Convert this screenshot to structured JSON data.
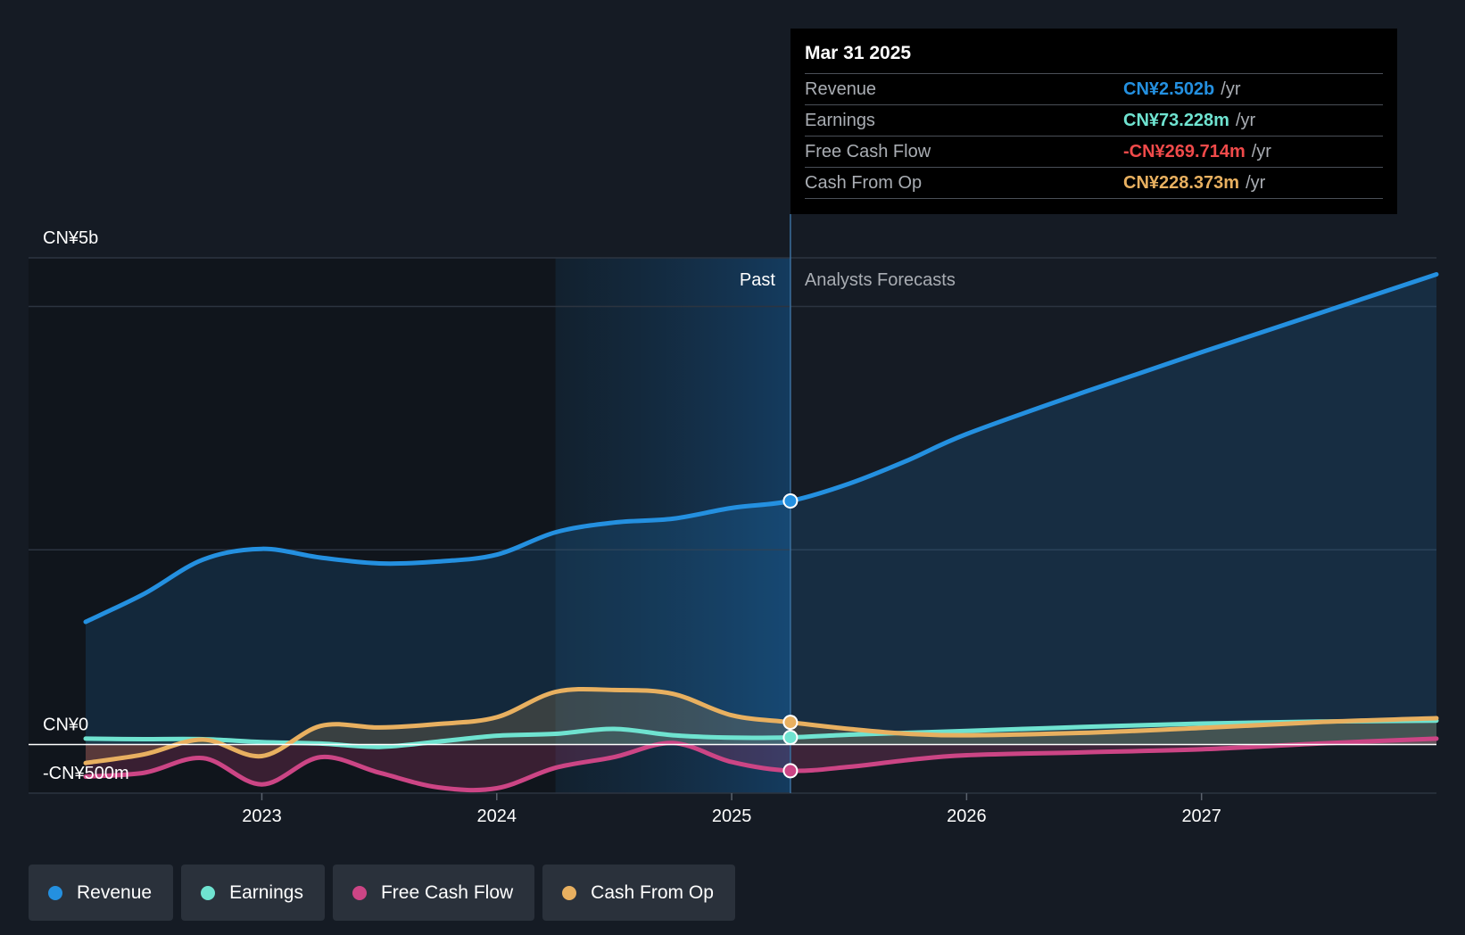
{
  "colors": {
    "revenue": "#2490e0",
    "earnings": "#6fe3d0",
    "free_cash_flow": "#cc4585",
    "cash_from_op": "#e8b060",
    "negative_value": "#f04a4a",
    "background": "#151b24"
  },
  "tooltip": {
    "date": "Mar 31 2025",
    "rows": [
      {
        "name": "Revenue",
        "value": "CN¥2.502b",
        "unit": "/yr",
        "color": "#2490e0"
      },
      {
        "name": "Earnings",
        "value": "CN¥73.228m",
        "unit": "/yr",
        "color": "#6fe3d0"
      },
      {
        "name": "Free Cash Flow",
        "value": "-CN¥269.714m",
        "unit": "/yr",
        "color": "#f04a4a"
      },
      {
        "name": "Cash From Op",
        "value": "CN¥228.373m",
        "unit": "/yr",
        "color": "#e8b060"
      }
    ]
  },
  "legend": [
    {
      "label": "Revenue",
      "color": "#2490e0"
    },
    {
      "label": "Earnings",
      "color": "#6fe3d0"
    },
    {
      "label": "Free Cash Flow",
      "color": "#cc4585"
    },
    {
      "label": "Cash From Op",
      "color": "#e8b060"
    }
  ],
  "chart_data": {
    "type": "line",
    "title": "",
    "y_unit": "CN¥ millions",
    "y_tick_labels": [
      {
        "value": 5000,
        "label": "CN¥5b"
      },
      {
        "value": 0,
        "label": "CN¥0"
      },
      {
        "value": -500,
        "label": "-CN¥500m"
      }
    ],
    "ylim": [
      -500,
      5000
    ],
    "xlim": [
      2022.25,
      2028.0
    ],
    "x_ticks": [
      2023,
      2024,
      2025,
      2026,
      2027
    ],
    "x_tick_labels": [
      "2023",
      "2024",
      "2025",
      "2026",
      "2027"
    ],
    "gridlines_y": [
      5000,
      4500,
      2000,
      -500
    ],
    "divider_x": 2025.25,
    "highlight_start_x": 2024.25,
    "past_label": "Past",
    "forecast_label": "Analysts Forecasts",
    "series": [
      {
        "name": "Revenue",
        "key": "revenue",
        "points": [
          [
            2022.25,
            1260
          ],
          [
            2022.5,
            1550
          ],
          [
            2022.75,
            1900
          ],
          [
            2023.0,
            2010
          ],
          [
            2023.25,
            1920
          ],
          [
            2023.5,
            1860
          ],
          [
            2023.75,
            1880
          ],
          [
            2024.0,
            1950
          ],
          [
            2024.25,
            2180
          ],
          [
            2024.5,
            2280
          ],
          [
            2024.75,
            2320
          ],
          [
            2025.0,
            2430
          ],
          [
            2025.25,
            2502
          ],
          [
            2025.5,
            2680
          ],
          [
            2025.75,
            2920
          ],
          [
            2026.0,
            3190
          ],
          [
            2026.5,
            3620
          ],
          [
            2027.0,
            4030
          ],
          [
            2027.5,
            4430
          ],
          [
            2028.0,
            4830
          ]
        ]
      },
      {
        "name": "Earnings",
        "key": "earnings",
        "points": [
          [
            2022.25,
            60
          ],
          [
            2022.5,
            55
          ],
          [
            2022.75,
            55
          ],
          [
            2023.0,
            25
          ],
          [
            2023.25,
            10
          ],
          [
            2023.5,
            -25
          ],
          [
            2023.75,
            30
          ],
          [
            2024.0,
            90
          ],
          [
            2024.25,
            110
          ],
          [
            2024.5,
            160
          ],
          [
            2024.75,
            95
          ],
          [
            2025.0,
            70
          ],
          [
            2025.25,
            73
          ],
          [
            2025.5,
            100
          ],
          [
            2025.75,
            120
          ],
          [
            2026.0,
            140
          ],
          [
            2026.5,
            180
          ],
          [
            2027.0,
            215
          ],
          [
            2027.5,
            235
          ],
          [
            2028.0,
            245
          ]
        ]
      },
      {
        "name": "Free Cash Flow",
        "key": "free_cash_flow",
        "points": [
          [
            2022.25,
            -330
          ],
          [
            2022.5,
            -290
          ],
          [
            2022.75,
            -140
          ],
          [
            2023.0,
            -410
          ],
          [
            2023.25,
            -130
          ],
          [
            2023.5,
            -290
          ],
          [
            2023.75,
            -440
          ],
          [
            2024.0,
            -450
          ],
          [
            2024.25,
            -240
          ],
          [
            2024.5,
            -130
          ],
          [
            2024.75,
            15
          ],
          [
            2025.0,
            -180
          ],
          [
            2025.25,
            -270
          ],
          [
            2025.5,
            -230
          ],
          [
            2025.75,
            -160
          ],
          [
            2026.0,
            -110
          ],
          [
            2026.5,
            -80
          ],
          [
            2027.0,
            -50
          ],
          [
            2027.5,
            10
          ],
          [
            2028.0,
            60
          ]
        ]
      },
      {
        "name": "Cash From Op",
        "key": "cash_from_op",
        "points": [
          [
            2022.25,
            -190
          ],
          [
            2022.5,
            -100
          ],
          [
            2022.75,
            50
          ],
          [
            2023.0,
            -120
          ],
          [
            2023.25,
            190
          ],
          [
            2023.5,
            175
          ],
          [
            2023.75,
            210
          ],
          [
            2024.0,
            280
          ],
          [
            2024.25,
            540
          ],
          [
            2024.5,
            560
          ],
          [
            2024.75,
            520
          ],
          [
            2025.0,
            300
          ],
          [
            2025.25,
            228
          ],
          [
            2025.5,
            160
          ],
          [
            2025.75,
            110
          ],
          [
            2026.0,
            95
          ],
          [
            2026.5,
            120
          ],
          [
            2027.0,
            170
          ],
          [
            2027.5,
            230
          ],
          [
            2028.0,
            270
          ]
        ]
      }
    ]
  }
}
